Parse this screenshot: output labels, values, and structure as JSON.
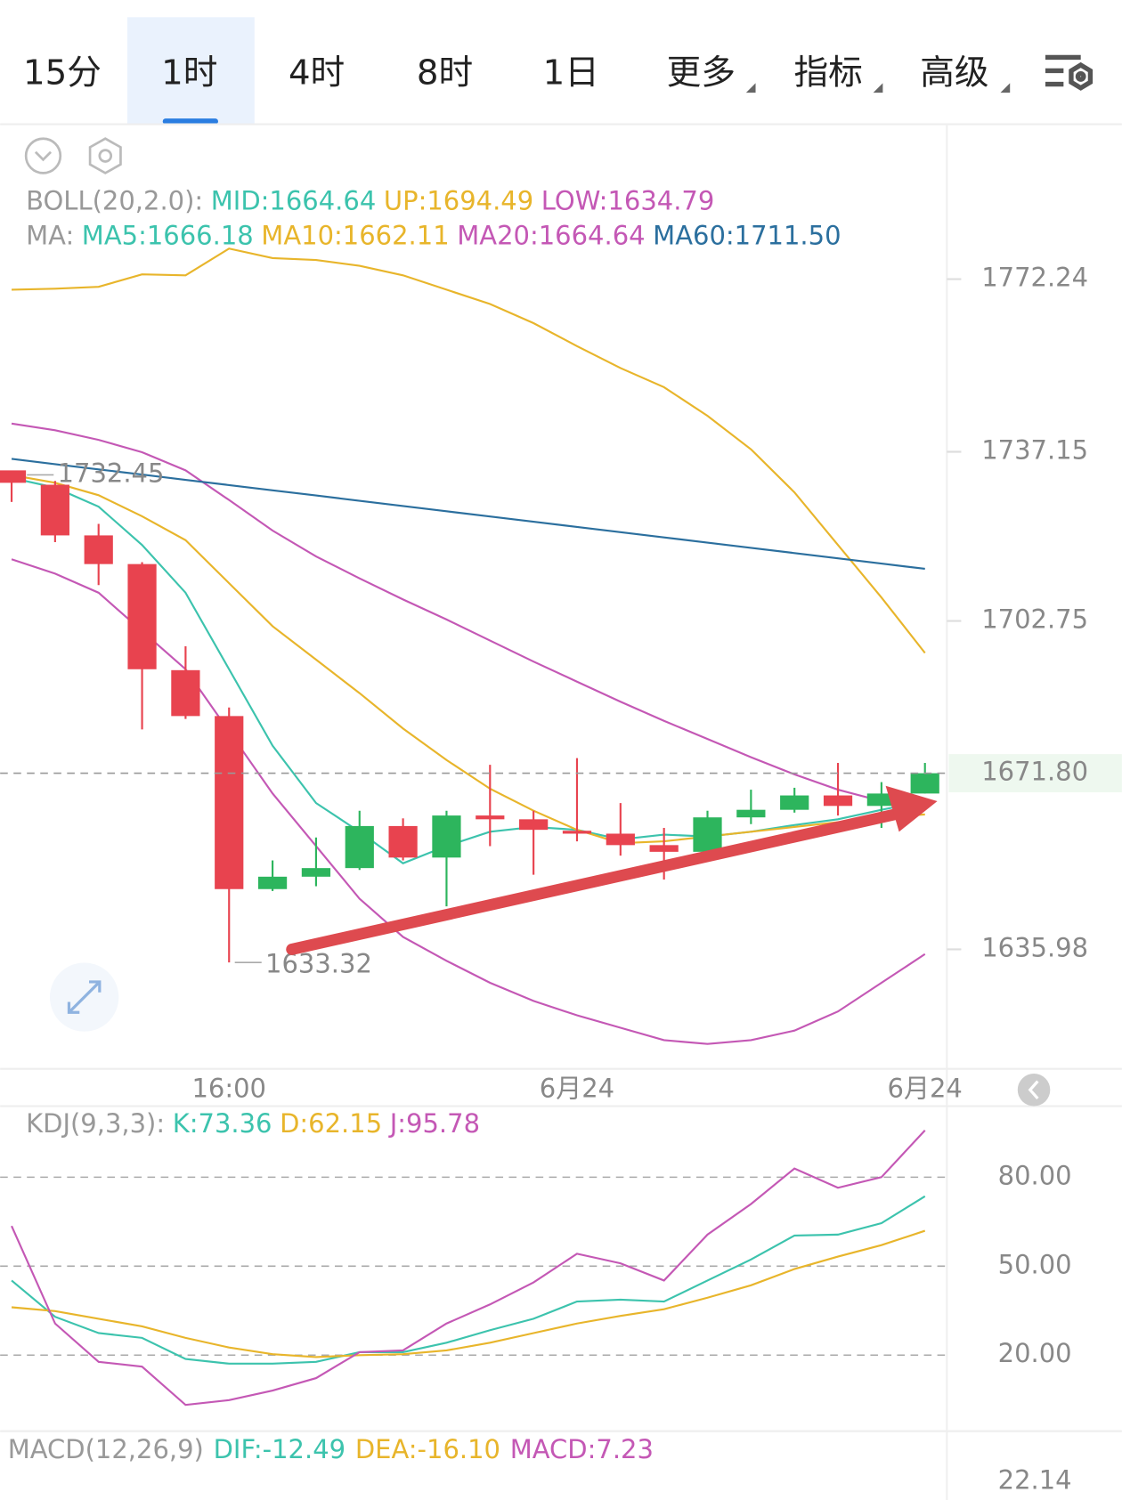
{
  "tabs": [
    "15分",
    "1时",
    "4时",
    "8时",
    "1日",
    "更多",
    "指标",
    "高级"
  ],
  "selected_tab": 1,
  "chart_data": [
    {
      "type": "candlestick",
      "legend": [
        {
          "prefix": "BOLL(20,2.0):",
          "items": [
            {
              "text": "MID:1664.64",
              "color": "#3cc3ad"
            },
            {
              "text": "UP:1694.49",
              "color": "#e8b52b"
            },
            {
              "text": "LOW:1634.79",
              "color": "#c458b5"
            }
          ]
        },
        {
          "prefix": "MA:",
          "items": [
            {
              "text": "MA5:1666.18",
              "color": "#3cc3ad"
            },
            {
              "text": "MA10:1662.11",
              "color": "#e8b52b"
            },
            {
              "text": "MA20:1664.64",
              "color": "#c458b5"
            },
            {
              "text": "MA60:1711.50",
              "color": "#2b6f9e"
            }
          ]
        }
      ],
      "categories": [
        null,
        null,
        null,
        null,
        null,
        "16:00",
        null,
        null,
        null,
        null,
        null,
        null,
        null,
        "6月24",
        null,
        null,
        null,
        null,
        null,
        null,
        null,
        "6月24"
      ],
      "open": [
        1733.37,
        1730.45,
        1720.15,
        1714.32,
        1692.75,
        1683.42,
        1648.24,
        1650.76,
        1652.51,
        1661.06,
        1654.65,
        1663.2,
        1662.43,
        1660.1,
        1659.51,
        1657.18,
        1655.82,
        1662.82,
        1664.36,
        1667.28,
        1665.15,
        1667.67
      ],
      "close": [
        1730.84,
        1720.15,
        1714.32,
        1692.94,
        1683.42,
        1648.24,
        1650.76,
        1652.51,
        1661.06,
        1654.65,
        1663.2,
        1662.43,
        1660.29,
        1659.51,
        1657.18,
        1655.82,
        1662.82,
        1664.36,
        1667.28,
        1665.15,
        1667.67,
        1671.8
      ],
      "high": [
        1732.45,
        1731.23,
        1722.48,
        1714.71,
        1697.61,
        1685.17,
        1654.07,
        1658.73,
        1664.17,
        1662.62,
        1664.17,
        1673.5,
        1664.17,
        1674.86,
        1665.73,
        1660.68,
        1664.17,
        1668.45,
        1668.84,
        1673.89,
        1669.99,
        1673.89
      ],
      "low": [
        1726.95,
        1718.79,
        1710.04,
        1680.7,
        1682.83,
        1633.32,
        1647.85,
        1648.82,
        1652.12,
        1654.07,
        1644.74,
        1656.98,
        1651.15,
        1657.95,
        1655.04,
        1650.18,
        1655.43,
        1661.45,
        1663.79,
        1663.2,
        1660.68,
        1667.67
      ],
      "up_color": "#2db55d",
      "down_color": "#e8434f",
      "series": [
        {
          "color": "#e8b52b",
          "values": [
            1770.1,
            1770.3,
            1770.68,
            1773.21,
            1773.02,
            1778.46,
            1776.52,
            1776.13,
            1774.96,
            1773.02,
            1770.1,
            1767.19,
            1763.3,
            1758.63,
            1754.16,
            1750.28,
            1744.45,
            1737.64,
            1728.9,
            1718.21,
            1707.52,
            1696.24
          ]
        },
        {
          "color": "#c458b5",
          "values": [
            1742.88,
            1741.53,
            1739.58,
            1737.06,
            1733.37,
            1727.34,
            1721.12,
            1715.88,
            1711.41,
            1707.13,
            1703.05,
            1698.77,
            1694.49,
            1690.41,
            1686.33,
            1682.44,
            1678.75,
            1675.05,
            1671.56,
            1668.45,
            1666.12,
            1664.64
          ]
        },
        {
          "color": "#c458b5",
          "values": [
            1715.29,
            1712.38,
            1708.49,
            1700.71,
            1692.94,
            1680.31,
            1667.67,
            1656.98,
            1646.29,
            1638.52,
            1633.66,
            1629.19,
            1625.49,
            1622.58,
            1620.06,
            1617.53,
            1616.75,
            1617.53,
            1619.47,
            1623.36,
            1629.19,
            1635.02
          ]
        },
        {
          "color": "#3cc3ad",
          "values": [
            1731.81,
            1729.87,
            1725.98,
            1718.21,
            1708.49,
            1692.94,
            1677.39,
            1665.73,
            1659.9,
            1653.49,
            1656.98,
            1659.9,
            1660.87,
            1660.29,
            1658.35,
            1659.32,
            1658.93,
            1659.9,
            1661.26,
            1662.43,
            1664.36,
            1666.12
          ]
        },
        {
          "color": "#e8b52b",
          "values": [
            1732.4,
            1730.84,
            1728.31,
            1724.04,
            1719.18,
            1710.43,
            1701.69,
            1694.88,
            1688.08,
            1680.89,
            1674.48,
            1668.65,
            1664.17,
            1660.29,
            1657.57,
            1657.95,
            1658.93,
            1659.9,
            1660.87,
            1661.84,
            1662.82,
            1663.41
          ]
        },
        {
          "color": "#2b6f9e",
          "values": [
            1735.7,
            1734.64,
            1733.57,
            1732.51,
            1731.44,
            1730.38,
            1729.31,
            1728.25,
            1727.19,
            1726.12,
            1725.06,
            1723.99,
            1722.93,
            1721.87,
            1720.8,
            1719.74,
            1718.67,
            1717.61,
            1716.55,
            1715.48,
            1714.42,
            1713.35
          ]
        }
      ],
      "ylim": [
        1612.28,
        1802.76
      ],
      "yticks": [
        1772.24,
        1737.15,
        1702.75,
        1635.98
      ],
      "last_price": {
        "value": 1671.8,
        "label": "1671.80"
      },
      "max_label": 1732.45,
      "min_label": 1633.32
    },
    {
      "type": "line",
      "legend": {
        "prefix": "KDJ(9,3,3):",
        "items": [
          {
            "text": "K:73.36",
            "color": "#3cc3ad"
          },
          {
            "text": "D:62.15",
            "color": "#e8b52b"
          },
          {
            "text": "J:95.78",
            "color": "#c458b5"
          }
        ]
      },
      "series": [
        {
          "color": "#3cc3ad",
          "values": [
            45.16,
            32.9,
            27.42,
            25.81,
            18.71,
            17.1,
            17.1,
            17.74,
            20.97,
            20.97,
            24.19,
            28.39,
            32.26,
            38.06,
            38.71,
            38.06,
            45.16,
            52.26,
            60.32,
            60.65,
            64.52,
            73.55
          ]
        },
        {
          "color": "#e8b52b",
          "values": [
            36.13,
            34.84,
            32.26,
            29.68,
            25.81,
            22.58,
            20.32,
            19.35,
            20.0,
            20.32,
            21.61,
            24.19,
            27.42,
            30.65,
            33.23,
            35.48,
            39.35,
            43.55,
            49.03,
            53.23,
            57.1,
            61.94
          ]
        },
        {
          "color": "#c458b5",
          "values": [
            63.55,
            30.65,
            17.74,
            16.13,
            3.23,
            4.84,
            8.06,
            12.26,
            20.97,
            21.61,
            30.65,
            37.1,
            44.52,
            54.19,
            50.97,
            45.16,
            60.65,
            70.97,
            82.9,
            76.45,
            80.0,
            95.81
          ]
        }
      ],
      "ylim": [
        -5,
        103
      ],
      "yticks": [
        {
          "value": 80,
          "label": "80.00"
        },
        {
          "value": 50,
          "label": "50.00"
        },
        {
          "value": 20,
          "label": "20.00"
        }
      ],
      "grid": true
    }
  ],
  "macd": {
    "prefix": "MACD(12,26,9)",
    "items": [
      {
        "text": "DIF:-12.49",
        "color": "#3cc3ad"
      },
      {
        "text": "DEA:-16.10",
        "color": "#e8b52b"
      },
      {
        "text": "MACD:7.23",
        "color": "#c458b5"
      }
    ],
    "tick": "22.14"
  }
}
